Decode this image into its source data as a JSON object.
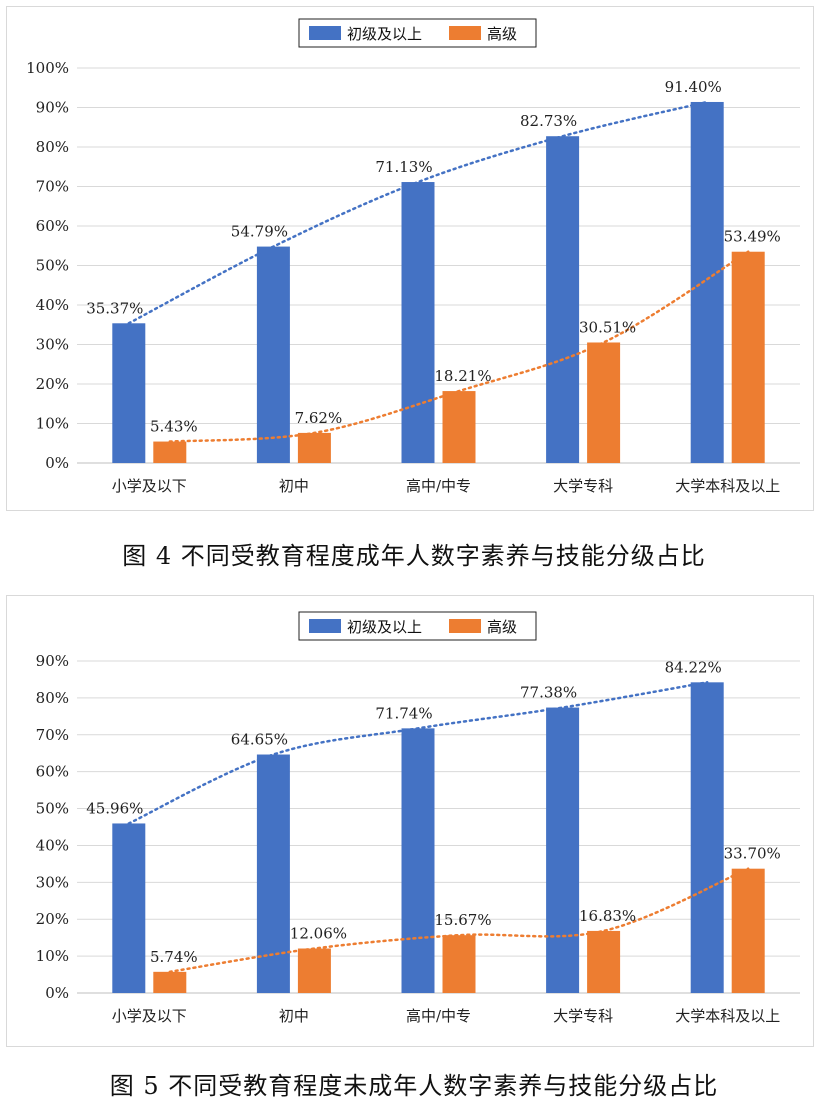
{
  "charts": [
    {
      "caption": "图 4  不同受教育程度成年人数字素养与技能分级占比",
      "chart_data": {
        "type": "bar",
        "categories": [
          "小学及以下",
          "初中",
          "高中/中专",
          "大学专科",
          "大学本科及以上"
        ],
        "series": [
          {
            "name": "初级及以上",
            "color": "#4472c4",
            "values": [
              35.37,
              54.79,
              71.13,
              82.73,
              91.4
            ],
            "labels": [
              "35.37%",
              "54.79%",
              "71.13%",
              "82.73%",
              "91.40%"
            ]
          },
          {
            "name": "高级",
            "color": "#ed7d31",
            "values": [
              5.43,
              7.62,
              18.21,
              30.51,
              53.49
            ],
            "labels": [
              "5.43%",
              "7.62%",
              "18.21%",
              "30.51%",
              "53.49%"
            ]
          }
        ],
        "ylim": [
          0,
          100
        ],
        "yticks": [
          "0%",
          "10%",
          "20%",
          "30%",
          "40%",
          "50%",
          "60%",
          "70%",
          "80%",
          "90%",
          "100%"
        ],
        "trendlines": "dotted",
        "grid": true,
        "legend": "top-center"
      }
    },
    {
      "caption": "图 5  不同受教育程度未成年人数字素养与技能分级占比",
      "chart_data": {
        "type": "bar",
        "categories": [
          "小学及以下",
          "初中",
          "高中/中专",
          "大学专科",
          "大学本科及以上"
        ],
        "series": [
          {
            "name": "初级及以上",
            "color": "#4472c4",
            "values": [
              45.96,
              64.65,
              71.74,
              77.38,
              84.22
            ],
            "labels": [
              "45.96%",
              "64.65%",
              "71.74%",
              "77.38%",
              "84.22%"
            ]
          },
          {
            "name": "高级",
            "color": "#ed7d31",
            "values": [
              5.74,
              12.06,
              15.67,
              16.83,
              33.7
            ],
            "labels": [
              "5.74%",
              "12.06%",
              "15.67%",
              "16.83%",
              "33.70%"
            ]
          }
        ],
        "ylim": [
          0,
          90
        ],
        "yticks": [
          "0%",
          "10%",
          "20%",
          "30%",
          "40%",
          "50%",
          "60%",
          "70%",
          "80%",
          "90%"
        ],
        "trendlines": "dotted",
        "grid": true,
        "legend": "top-center"
      }
    }
  ]
}
